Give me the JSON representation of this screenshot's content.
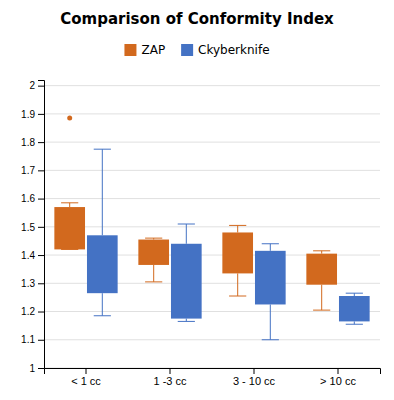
{
  "chart_data": {
    "type": "box",
    "title": "Comparison of Conformity Index",
    "categories": [
      "< 1 cc",
      "1 -3 cc",
      "3 - 10 cc",
      "> 10 cc"
    ],
    "series": [
      {
        "name": "ZAP",
        "color": "#D2691E",
        "boxes": [
          {
            "q1": 1.42,
            "q3": 1.57,
            "whisker_low": 1.42,
            "whisker_high": 1.585,
            "outlier": 1.885
          },
          {
            "q1": 1.365,
            "q3": 1.455,
            "whisker_low": 1.305,
            "whisker_high": 1.46
          },
          {
            "q1": 1.335,
            "q3": 1.48,
            "whisker_low": 1.255,
            "whisker_high": 1.505
          },
          {
            "q1": 1.295,
            "q3": 1.405,
            "whisker_low": 1.205,
            "whisker_high": 1.415
          }
        ]
      },
      {
        "name": "Ckyberknife",
        "color": "#4472C4",
        "boxes": [
          {
            "q1": 1.265,
            "q3": 1.47,
            "whisker_low": 1.185,
            "whisker_high": 1.775
          },
          {
            "q1": 1.175,
            "q3": 1.44,
            "whisker_low": 1.165,
            "whisker_high": 1.51
          },
          {
            "q1": 1.225,
            "q3": 1.415,
            "whisker_low": 1.1,
            "whisker_high": 1.44
          },
          {
            "q1": 1.165,
            "q3": 1.255,
            "whisker_low": 1.155,
            "whisker_high": 1.265
          }
        ]
      }
    ],
    "ylim": [
      1.0,
      2.02
    ],
    "yticks": [
      1,
      1.1,
      1.2,
      1.3,
      1.4,
      1.5,
      1.6,
      1.7,
      1.8,
      1.9,
      2
    ],
    "grid": true,
    "legend": "top"
  }
}
